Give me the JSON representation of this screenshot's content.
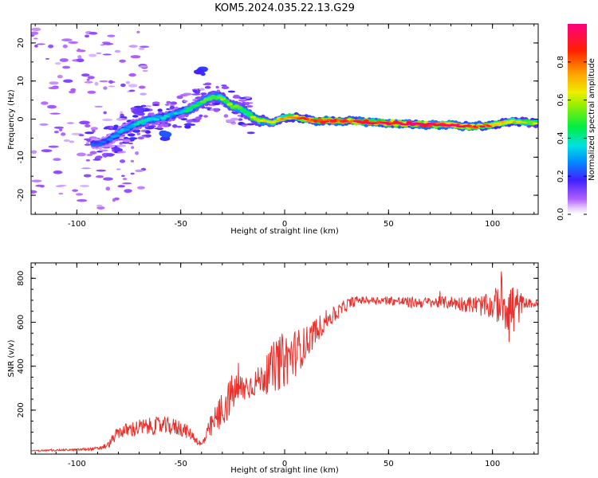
{
  "figure": {
    "title": "KOM5.2024.035.22.13.G29"
  },
  "colors": {
    "snr_line": "#e8302c",
    "axis": "#000000",
    "background": "#ffffff"
  },
  "chart_data": [
    {
      "type": "heatmap",
      "xlabel": "Height of straight line (km)",
      "ylabel": "Frequency (Hz)",
      "xlim": [
        -122,
        122
      ],
      "ylim": [
        -25,
        25
      ],
      "xticks": [
        -100,
        -50,
        0,
        50,
        100
      ],
      "yticks": [
        -20,
        -10,
        0,
        10,
        20
      ],
      "grid": false,
      "colorscale": "hsv",
      "colorbar": {
        "label": "Normalized spectral amplitude",
        "range": [
          0,
          1
        ],
        "ticks": [
          0.0,
          0.2,
          0.4,
          0.6,
          0.8
        ]
      },
      "ridge": {
        "description_values": "dominant frequency (Hz) vs height (km) with normalized amplitude",
        "x": [
          -88,
          -82,
          -76,
          -70,
          -64,
          -58,
          -52,
          -46,
          -40,
          -34,
          -30,
          -26,
          -22,
          -18,
          -14,
          -10,
          -6,
          -2,
          2,
          6,
          10,
          14,
          20,
          30,
          40,
          50,
          60,
          70,
          80,
          90,
          100,
          110,
          120
        ],
        "freq": [
          -6.5,
          -4.5,
          -2.5,
          -1,
          0,
          0.5,
          1.5,
          2.5,
          4.5,
          6,
          5.5,
          3.5,
          3,
          1.5,
          0,
          -0.5,
          -1,
          0,
          0.5,
          0.5,
          0,
          -0.5,
          -0.5,
          -0.5,
          -0.8,
          -1,
          -1.2,
          -1.5,
          -1.5,
          -2,
          -1.5,
          -0.5,
          -1
        ],
        "amplitude": [
          0.22,
          0.28,
          0.32,
          0.36,
          0.38,
          0.35,
          0.34,
          0.4,
          0.45,
          0.5,
          0.52,
          0.55,
          0.52,
          0.5,
          0.55,
          0.6,
          0.62,
          0.68,
          0.72,
          0.8,
          0.85,
          0.92,
          0.95,
          0.92,
          0.95,
          0.97,
          0.98,
          0.98,
          0.97,
          0.92,
          0.8,
          0.68,
          0.6
        ]
      },
      "patches": [
        {
          "x": -40,
          "freq": 12.5,
          "amplitude": 0.22
        },
        {
          "x": -58,
          "freq": -4.5,
          "amplitude": 0.25
        },
        {
          "x": -70,
          "freq": 2,
          "amplitude": 0.22
        }
      ]
    },
    {
      "type": "line",
      "xlabel": "Height of straight line (km)",
      "ylabel": "SNR (v/v)",
      "xlim": [
        -122,
        122
      ],
      "ylim": [
        0,
        870
      ],
      "xticks": [
        -100,
        -50,
        0,
        50,
        100
      ],
      "yticks": [
        200,
        400,
        600,
        800
      ],
      "grid": false,
      "series": [
        {
          "trend_x": [
            -122,
            -100,
            -90,
            -85,
            -80,
            -70,
            -60,
            -50,
            -45,
            -40,
            -35,
            -30,
            -25,
            -20,
            -15,
            -10,
            -5,
            0,
            5,
            10,
            15,
            20,
            25,
            30,
            35,
            40,
            50,
            60,
            70,
            80,
            90,
            100,
            105,
            110,
            115,
            122
          ],
          "trend_y": [
            15,
            20,
            25,
            40,
            100,
            120,
            130,
            120,
            90,
            40,
            130,
            200,
            280,
            300,
            320,
            350,
            400,
            430,
            460,
            500,
            560,
            610,
            640,
            680,
            700,
            700,
            700,
            690,
            690,
            690,
            680,
            670,
            700,
            650,
            690,
            680
          ],
          "noise": [
            3,
            5,
            8,
            15,
            30,
            40,
            40,
            40,
            25,
            15,
            60,
            90,
            90,
            70,
            60,
            70,
            120,
            130,
            110,
            80,
            60,
            45,
            35,
            30,
            20,
            15,
            20,
            25,
            25,
            30,
            40,
            60,
            120,
            150,
            25,
            15
          ]
        }
      ]
    }
  ]
}
